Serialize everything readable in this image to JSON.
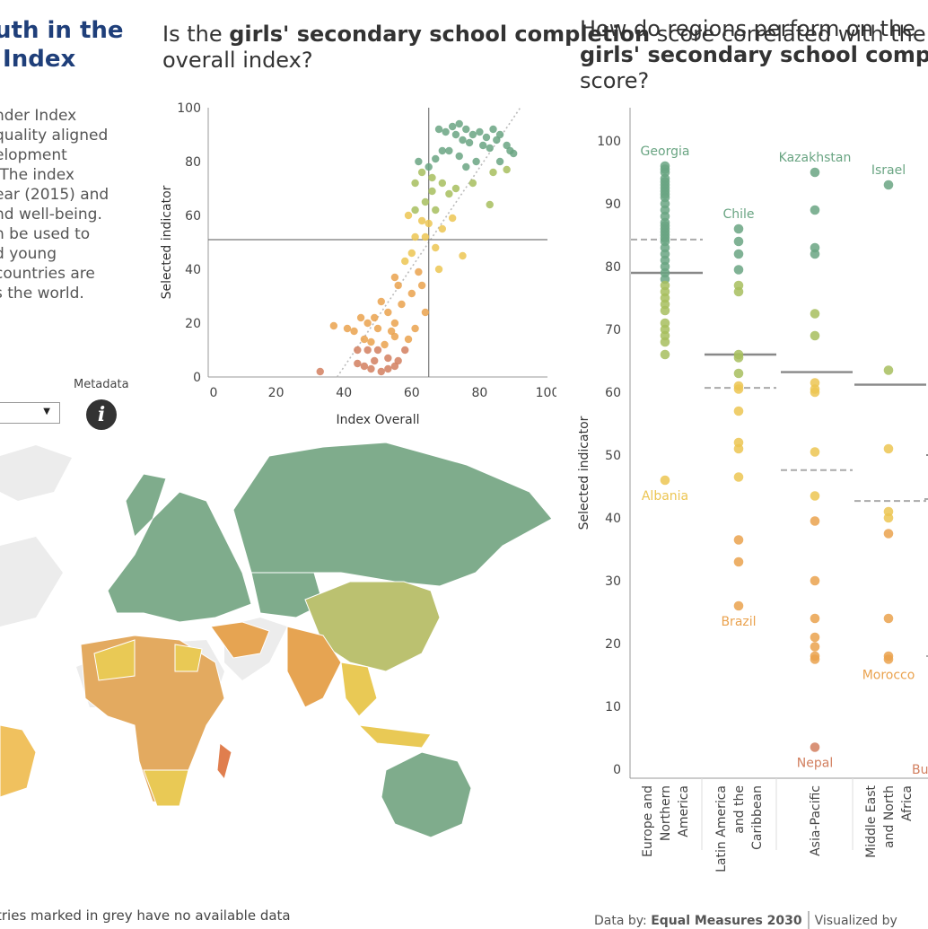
{
  "left_panel": {
    "title_line1": "uth in the",
    "title_line2": " Index",
    "description_lines": [
      "nder Index",
      "quality aligned",
      "elopment",
      " The index",
      "ear (2015) and",
      "nd well-being.",
      "n be used to",
      "d young",
      "countries are",
      "s the world."
    ],
    "metadata_label": "Metadata",
    "info_icon": "info-icon",
    "dropdown_icon": "caret-down-icon",
    "footer_note": "tries marked in grey have no available data"
  },
  "scatter_panel": {
    "title_pre": "Is the ",
    "title_bold": "girls' secondary school completion",
    "title_post": " score correlated with the overall index?"
  },
  "strip_panel": {
    "title_line1": "How do regions perform on the",
    "title_bold": "girls' secondary school compl",
    "title_line3": "score?"
  },
  "footer": {
    "data_by_label": "Data by:",
    "data_by_source": "Equal Measures 2030",
    "visualized_by": "Visualized by"
  },
  "map": {
    "description": "Choropleth world map; countries marked in grey have no available data",
    "colors": {
      "high": "#7aab8a",
      "mid": "#c8c26a",
      "low": "#e8a05a",
      "nodata": "#e8e8e8"
    }
  },
  "colors": {
    "green": "#6aa583",
    "yellowgreen": "#a7be5e",
    "yellow": "#ecc552",
    "orange": "#eaa24e",
    "red": "#d27f5f",
    "title_blue": "#1f3f7a"
  },
  "chart_data": [
    {
      "type": "scatter",
      "xlabel": "Index Overall",
      "ylabel": "Selected indicator",
      "xlim": [
        0,
        100
      ],
      "ylim": [
        0,
        100
      ],
      "xticks": [
        0,
        20,
        40,
        60,
        80,
        100
      ],
      "yticks": [
        0,
        20,
        40,
        60,
        80,
        100
      ],
      "reference_lines": {
        "x": 65,
        "y": 51
      },
      "trendline": "dotted diagonal",
      "points": [
        [
          72,
          93
        ],
        [
          74,
          94
        ],
        [
          76,
          92
        ],
        [
          78,
          90
        ],
        [
          80,
          91
        ],
        [
          82,
          89
        ],
        [
          84,
          92
        ],
        [
          85,
          88
        ],
        [
          86,
          90
        ],
        [
          88,
          86
        ],
        [
          89,
          84
        ],
        [
          90,
          83
        ],
        [
          83,
          85
        ],
        [
          81,
          86
        ],
        [
          77,
          87
        ],
        [
          75,
          88
        ],
        [
          73,
          90
        ],
        [
          70,
          91
        ],
        [
          68,
          92
        ],
        [
          71,
          84
        ],
        [
          74,
          82
        ],
        [
          79,
          80
        ],
        [
          86,
          80
        ],
        [
          88,
          77
        ],
        [
          84,
          76
        ],
        [
          76,
          78
        ],
        [
          67,
          81
        ],
        [
          69,
          84
        ],
        [
          65,
          78
        ],
        [
          66,
          74
        ],
        [
          69,
          72
        ],
        [
          73,
          70
        ],
        [
          78,
          72
        ],
        [
          71,
          68
        ],
        [
          63,
          76
        ],
        [
          62,
          80
        ],
        [
          66,
          69
        ],
        [
          61,
          72
        ],
        [
          64,
          65
        ],
        [
          67,
          62
        ],
        [
          72,
          59
        ],
        [
          83,
          64
        ],
        [
          65,
          57
        ],
        [
          69,
          55
        ],
        [
          61,
          62
        ],
        [
          63,
          58
        ],
        [
          59,
          60
        ],
        [
          61,
          52
        ],
        [
          64,
          52
        ],
        [
          67,
          48
        ],
        [
          60,
          46
        ],
        [
          68,
          40
        ],
        [
          75,
          45
        ],
        [
          62,
          39
        ],
        [
          58,
          43
        ],
        [
          55,
          37
        ],
        [
          56,
          34
        ],
        [
          60,
          31
        ],
        [
          63,
          34
        ],
        [
          57,
          27
        ],
        [
          51,
          28
        ],
        [
          53,
          24
        ],
        [
          55,
          20
        ],
        [
          54,
          17
        ],
        [
          49,
          22
        ],
        [
          47,
          20
        ],
        [
          46,
          14
        ],
        [
          43,
          17
        ],
        [
          44,
          10
        ],
        [
          48,
          13
        ],
        [
          50,
          10
        ],
        [
          52,
          12
        ],
        [
          55,
          15
        ],
        [
          59,
          14
        ],
        [
          61,
          18
        ],
        [
          64,
          24
        ],
        [
          53,
          7
        ],
        [
          56,
          6
        ],
        [
          49,
          6
        ],
        [
          48,
          3
        ],
        [
          51,
          2
        ],
        [
          53,
          3
        ],
        [
          46,
          4
        ],
        [
          33,
          2
        ],
        [
          37,
          19
        ],
        [
          45,
          22
        ],
        [
          50,
          18
        ],
        [
          47,
          10
        ],
        [
          44,
          5
        ],
        [
          55,
          4
        ],
        [
          58,
          10
        ],
        [
          41,
          18
        ]
      ]
    },
    {
      "type": "scatter",
      "ylabel": "Selected indicator",
      "ylim": [
        0,
        100
      ],
      "yticks": [
        0,
        10,
        20,
        30,
        40,
        50,
        60,
        70,
        80,
        90,
        100
      ],
      "categories": [
        "Europe and Northern America",
        "Latin America and the Caribbean",
        "Asia-Pacific",
        "Middle East and North Africa"
      ],
      "category_labels": [
        [
          "Europe and",
          "Northern",
          "America"
        ],
        [
          "Latin America",
          "and the",
          "Caribbean"
        ],
        [
          "Asia-Pacific"
        ],
        [
          "Middle East",
          "and North",
          "Africa"
        ]
      ],
      "series": [
        {
          "values": [
            96,
            95.5,
            95,
            94,
            93.5,
            93,
            92.5,
            92,
            91.5,
            91,
            90,
            89,
            88,
            87,
            86.5,
            86,
            85.5,
            85,
            84.5,
            84,
            83,
            82,
            81,
            80,
            79,
            78,
            77,
            76,
            75,
            74,
            73,
            71,
            70,
            69,
            68,
            66,
            46
          ],
          "median": 79,
          "reference": 84.3,
          "labels": [
            {
              "text": "Georgia",
              "value": 96,
              "pos": "above"
            },
            {
              "text": "Albania",
              "value": 46,
              "pos": "below"
            }
          ]
        },
        {
          "values": [
            86,
            84,
            82,
            79.5,
            77,
            76,
            66,
            65.5,
            63,
            61,
            60.5,
            57,
            52,
            51,
            46.5,
            36.5,
            33,
            26
          ],
          "median": 66,
          "reference": 60.7,
          "labels": [
            {
              "text": "Chile",
              "value": 86,
              "pos": "above"
            },
            {
              "text": "Brazil",
              "value": 26,
              "pos": "below"
            }
          ]
        },
        {
          "values": [
            95,
            89,
            83,
            82,
            72.5,
            69,
            61.5,
            60.5,
            60,
            50.5,
            43.5,
            39.5,
            30,
            24,
            21,
            19.5,
            18,
            17.5,
            3.5
          ],
          "median": 63.2,
          "reference": 47.6,
          "labels": [
            {
              "text": "Kazakhstan",
              "value": 95,
              "pos": "above"
            },
            {
              "text": "Nepal",
              "value": 3.5,
              "pos": "below"
            }
          ]
        },
        {
          "values": [
            93,
            63.5,
            51,
            41,
            40,
            37.5,
            24,
            18,
            17.5
          ],
          "median": 61.2,
          "reference": 42.7,
          "labels": [
            {
              "text": "Israel",
              "value": 93,
              "pos": "above"
            },
            {
              "text": "Morocco",
              "value": 17.5,
              "pos": "below"
            }
          ]
        }
      ],
      "clipped_labels": [
        "Bu"
      ]
    }
  ]
}
